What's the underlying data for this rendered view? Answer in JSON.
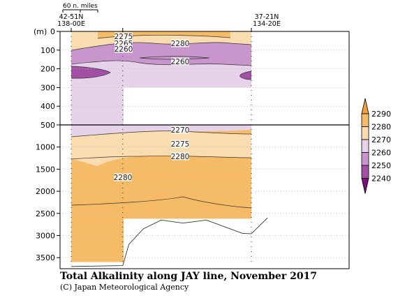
{
  "chart_data": {
    "type": "heatmap",
    "title": "Total Alkalinity along JAY line, November 2017",
    "credit": "(C) Japan Meteorological Agency",
    "y_unit": "(m)",
    "scale_label": "60 n. miles",
    "x_start_label": [
      "42-51N",
      "138-00E"
    ],
    "x_end_label": [
      "37-21N",
      "134-20E"
    ],
    "upper_panel": {
      "ylim": [
        0,
        500
      ],
      "yticks": [
        "0",
        "100",
        "200",
        "300",
        "400",
        "500"
      ]
    },
    "lower_panel": {
      "ylim": [
        500,
        3750
      ],
      "yticks": [
        "1000",
        "1500",
        "2000",
        "2500",
        "3000",
        "3500"
      ]
    },
    "colorbar": {
      "levels": [
        2240,
        2250,
        2260,
        2270,
        2280,
        2290
      ],
      "colors": [
        "#7a0f7e",
        "#a34fa6",
        "#c896cc",
        "#e6d3ea",
        "#f9dcb0",
        "#f6bb66",
        "#f0a13e"
      ]
    },
    "contour_labels": [
      "2275",
      "2265",
      "2260",
      "2280",
      "2260",
      "2270",
      "2275",
      "2280",
      "2280"
    ],
    "station_positions": [
      0,
      0.286,
      1
    ],
    "bottom_depth": [
      {
        "x": 0.0,
        "depth": 3700
      },
      {
        "x": 0.286,
        "depth": 3680
      },
      {
        "x": 0.32,
        "depth": 3200
      },
      {
        "x": 0.4,
        "depth": 2850
      },
      {
        "x": 0.5,
        "depth": 2650
      },
      {
        "x": 0.62,
        "depth": 2720
      },
      {
        "x": 0.75,
        "depth": 2650
      },
      {
        "x": 0.95,
        "depth": 2950
      },
      {
        "x": 1.0,
        "depth": 2960
      },
      {
        "x": 1.09,
        "depth": 2600
      }
    ]
  }
}
